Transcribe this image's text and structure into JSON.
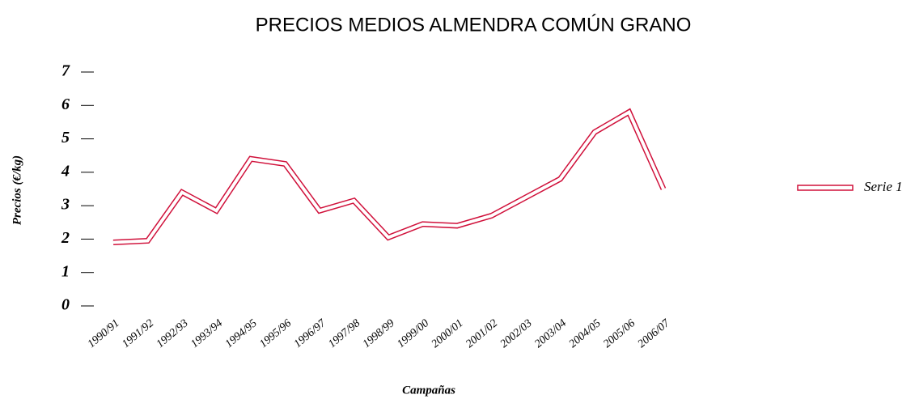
{
  "chart_data": {
    "type": "line",
    "title": "PRECIOS MEDIOS ALMENDRA COMÚN GRANO",
    "x_label": "Campañas",
    "y_label": "Precios (€/kg)",
    "categories": [
      "1990/91",
      "1991/92",
      "1992/93",
      "1993/94",
      "1994/95",
      "1995/96",
      "1996/97",
      "1997/98",
      "1998/99",
      "1999/00",
      "2000/01",
      "2001/02",
      "2002/03",
      "2003/04",
      "2004/05",
      "2005/06",
      "2006/07"
    ],
    "series": [
      {
        "name": "Serie 1",
        "color": "#d0103a",
        "values": [
          1.9,
          1.95,
          3.4,
          2.85,
          4.4,
          4.25,
          2.85,
          3.15,
          2.05,
          2.45,
          2.4,
          2.7,
          3.25,
          3.8,
          5.2,
          5.8,
          3.5
        ]
      }
    ],
    "ylim": [
      0,
      7
    ],
    "yticks": [
      0,
      1,
      2,
      3,
      4,
      5,
      6,
      7
    ],
    "legend": "right"
  }
}
